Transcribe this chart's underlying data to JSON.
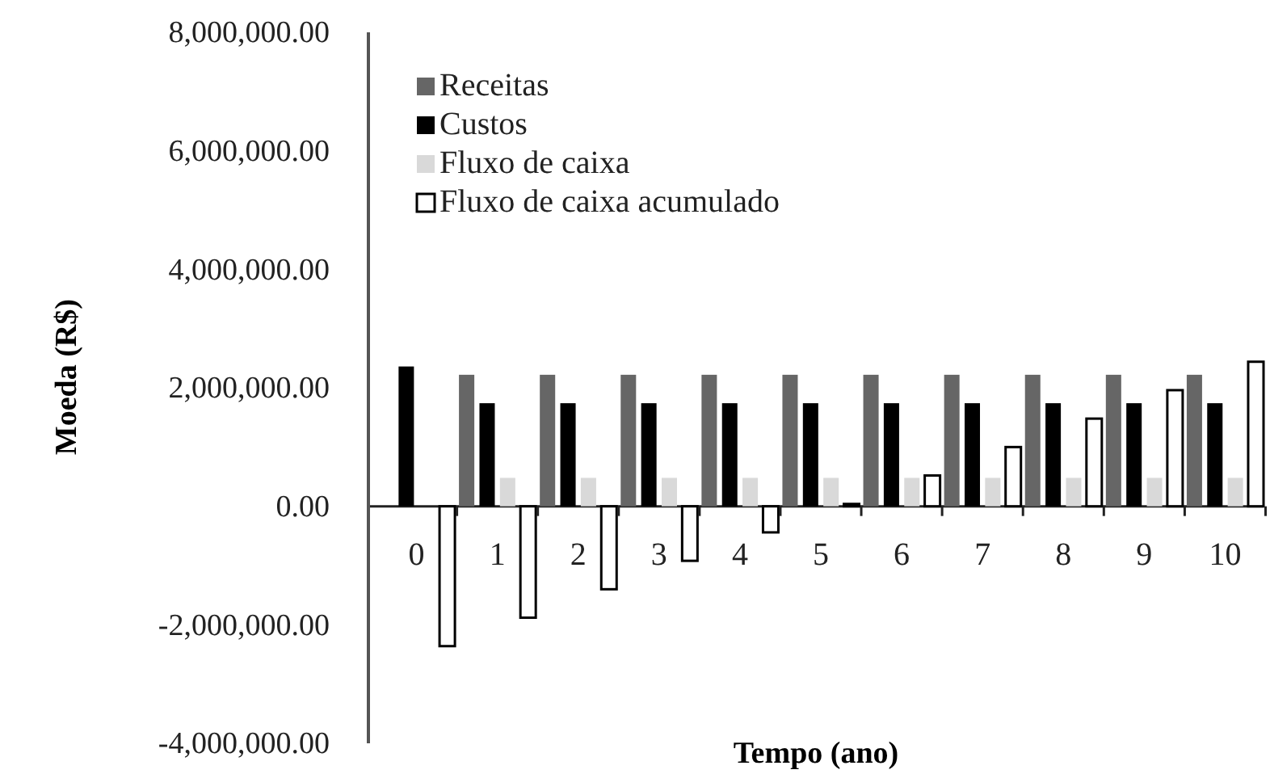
{
  "chart_data": {
    "type": "bar",
    "xlabel": "Tempo (ano)",
    "ylabel": "Moeda (R$)",
    "categories": [
      "0",
      "1",
      "2",
      "3",
      "4",
      "5",
      "6",
      "7",
      "8",
      "9",
      "10"
    ],
    "series": [
      {
        "name": "Receitas",
        "color": "#666666",
        "values": [
          null,
          2220000,
          2220000,
          2220000,
          2220000,
          2220000,
          2220000,
          2220000,
          2220000,
          2220000,
          2220000
        ]
      },
      {
        "name": "Custos",
        "color": "#000000",
        "values": [
          2360000,
          1740000,
          1740000,
          1740000,
          1740000,
          1740000,
          1740000,
          1740000,
          1740000,
          1740000,
          1740000
        ]
      },
      {
        "name": "Fluxo de caixa",
        "color": "#d9d9d9",
        "values": [
          null,
          480000,
          480000,
          480000,
          480000,
          480000,
          480000,
          480000,
          480000,
          480000,
          480000
        ]
      },
      {
        "name": "Fluxo de caixa acumulado",
        "color": "#ffffff",
        "values": [
          -2360000,
          -1880000,
          -1400000,
          -920000,
          -440000,
          40000,
          520000,
          1000000,
          1480000,
          1960000,
          2440000
        ]
      }
    ],
    "ylim": [
      -4000000,
      8000000
    ],
    "yticks": [
      {
        "value": -4000000,
        "label": "-4,000,000.00"
      },
      {
        "value": -2000000,
        "label": "-2,000,000.00"
      },
      {
        "value": 0,
        "label": "0.00"
      },
      {
        "value": 2000000,
        "label": "2,000,000.00"
      },
      {
        "value": 4000000,
        "label": "4,000,000.00"
      },
      {
        "value": 6000000,
        "label": "6,000,000.00"
      },
      {
        "value": 8000000,
        "label": "8,000,000.00"
      }
    ],
    "grid": false,
    "legend": "top left"
  }
}
